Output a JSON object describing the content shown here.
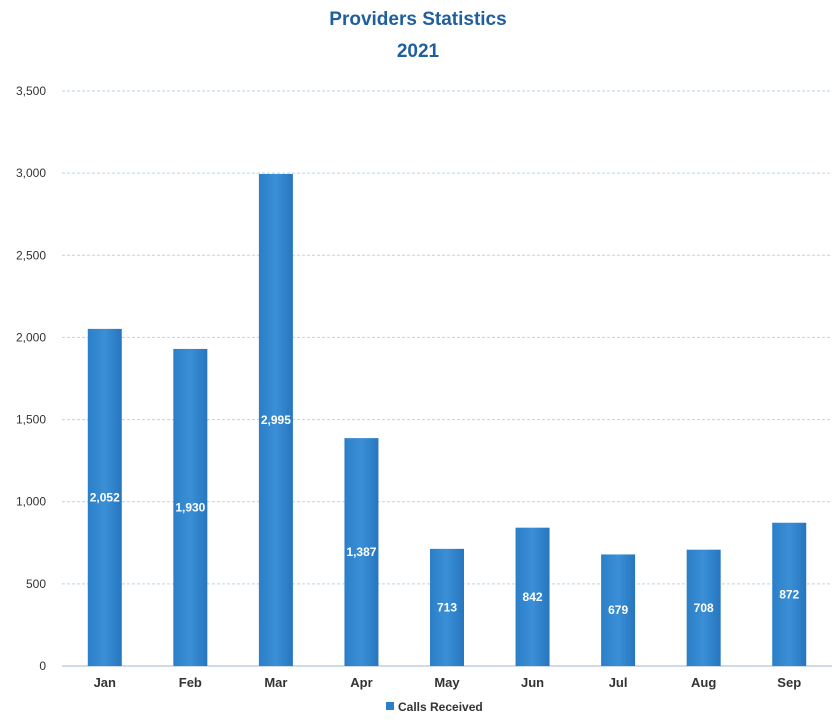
{
  "chart_data": {
    "type": "bar",
    "title": "Providers Statistics",
    "subtitle": "2021",
    "categories": [
      "Jan",
      "Feb",
      "Mar",
      "Apr",
      "May",
      "Jun",
      "Jul",
      "Aug",
      "Sep"
    ],
    "series": [
      {
        "name": "Calls Received",
        "values": [
          2052,
          1930,
          2995,
          1387,
          713,
          842,
          679,
          708,
          872
        ]
      }
    ],
    "data_labels": [
      "2,052",
      "1,930",
      "2,995",
      "1,387",
      "713",
      "842",
      "679",
      "708",
      "872"
    ],
    "ylim": [
      0,
      3500
    ],
    "yticks": [
      0,
      500,
      1000,
      1500,
      2000,
      2500,
      3000,
      3500
    ],
    "ytick_labels": [
      "0",
      "500",
      "1,000",
      "1,500",
      "2,000",
      "2,500",
      "3,000",
      "3,500"
    ],
    "grid": true,
    "legend_position": "bottom",
    "bar_color": "#2a7fc9"
  }
}
